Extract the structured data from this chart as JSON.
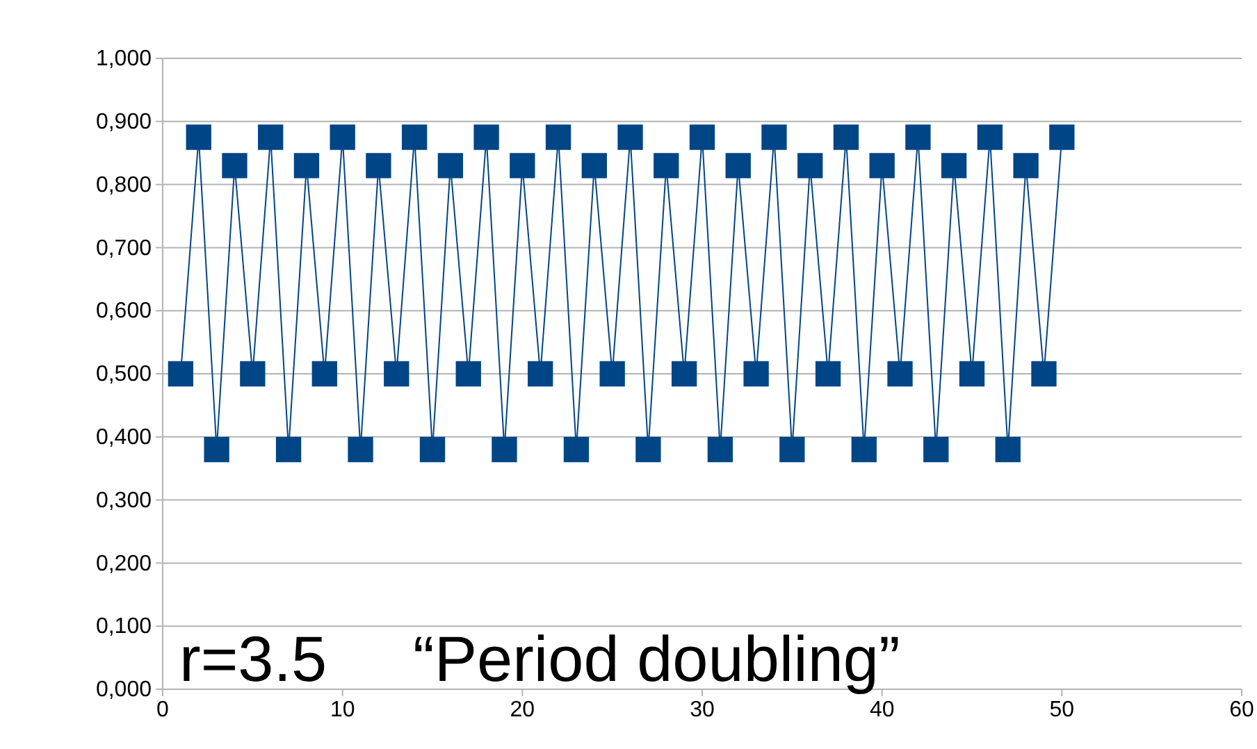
{
  "chart_data": {
    "type": "line",
    "x": [
      1,
      2,
      3,
      4,
      5,
      6,
      7,
      8,
      9,
      10,
      11,
      12,
      13,
      14,
      15,
      16,
      17,
      18,
      19,
      20,
      21,
      22,
      23,
      24,
      25,
      26,
      27,
      28,
      29,
      30,
      31,
      32,
      33,
      34,
      35,
      36,
      37,
      38,
      39,
      40,
      41,
      42,
      43,
      44,
      45,
      46,
      47,
      48,
      49,
      50
    ],
    "series": [
      {
        "color": "#004586",
        "values": [
          0.5,
          0.875,
          0.38,
          0.83,
          0.5,
          0.875,
          0.38,
          0.83,
          0.5,
          0.875,
          0.38,
          0.83,
          0.5,
          0.875,
          0.38,
          0.83,
          0.5,
          0.875,
          0.38,
          0.83,
          0.5,
          0.875,
          0.38,
          0.83,
          0.5,
          0.875,
          0.38,
          0.83,
          0.5,
          0.875,
          0.38,
          0.83,
          0.5,
          0.875,
          0.38,
          0.83,
          0.5,
          0.875,
          0.38,
          0.83,
          0.5,
          0.875,
          0.38,
          0.83,
          0.5,
          0.875,
          0.38,
          0.83,
          0.5,
          0.875
        ]
      }
    ],
    "xlim": [
      0,
      60
    ],
    "xticks": [
      0,
      10,
      20,
      30,
      40,
      50,
      60
    ],
    "ylim": [
      0,
      1
    ],
    "yticks": [
      {
        "value": 0,
        "label": "0,000"
      },
      {
        "value": 0.1,
        "label": "0,100"
      },
      {
        "value": 0.2,
        "label": "0,200"
      },
      {
        "value": 0.3,
        "label": "0,300"
      },
      {
        "value": 0.4,
        "label": "0,400"
      },
      {
        "value": 0.5,
        "label": "0,500"
      },
      {
        "value": 0.6,
        "label": "0,600"
      },
      {
        "value": 0.7,
        "label": "0,700"
      },
      {
        "value": 0.8,
        "label": "0,800"
      },
      {
        "value": 0.9,
        "label": "0,900"
      },
      {
        "value": 1,
        "label": "1,000"
      }
    ],
    "grid": "y",
    "marker": "square",
    "line_style": "solid",
    "annotations": [
      "r=3.5",
      "“Period doubling”"
    ]
  }
}
